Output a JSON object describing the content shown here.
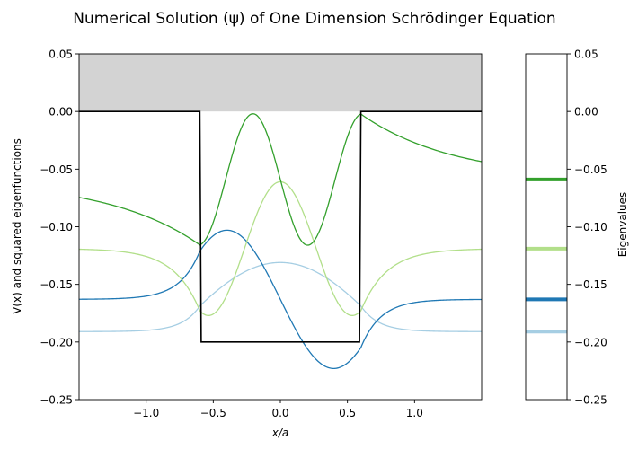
{
  "chart_data": [
    {
      "type": "line",
      "title": "Numerical Solution (ψ) of One Dimension Schrödinger Equation",
      "xlabel": "x/a",
      "ylabel": "V(x) and squared eigenfunctions",
      "xlim": [
        -1.5,
        1.5
      ],
      "ylim": [
        -0.25,
        0.05
      ],
      "xticks": [
        -1.0,
        -0.5,
        0.0,
        0.5,
        1.0
      ],
      "xtick_labels": [
        "−1.0",
        "−0.5",
        "0.0",
        "0.5",
        "1.0"
      ],
      "yticks": [
        0.05,
        0.0,
        -0.05,
        -0.1,
        -0.15,
        -0.2,
        -0.25
      ],
      "ytick_labels": [
        "0.05",
        "0.00",
        "−0.05",
        "−0.10",
        "−0.15",
        "−0.20",
        "−0.25"
      ],
      "grid": false,
      "shaded_region": {
        "y_from": 0.0,
        "y_to": 0.05,
        "color": "#d3d3d3"
      },
      "potential": {
        "color": "#000000",
        "x": [
          -1.5,
          -0.6,
          -0.59,
          0.59,
          0.6,
          1.5
        ],
        "y": [
          0.0,
          0.0,
          -0.2,
          -0.2,
          0.0,
          0.0
        ]
      },
      "series": [
        {
          "level": -0.191,
          "amplitude": 0.06,
          "n": 1,
          "color": "#a6cee3"
        },
        {
          "level": -0.163,
          "amplitude": 0.06,
          "n": 2,
          "color": "#1f78b4"
        },
        {
          "level": -0.119,
          "amplitude": 0.058,
          "n": 3,
          "color": "#b2df8a"
        },
        {
          "level": -0.059,
          "amplitude": 0.057,
          "n": 4,
          "color": "#33a02c"
        }
      ]
    },
    {
      "type": "eigenvalue_bar",
      "ylabel": "Eigenvalues",
      "ylim": [
        -0.25,
        0.05
      ],
      "yticks": [
        0.05,
        0.0,
        -0.05,
        -0.1,
        -0.15,
        -0.2,
        -0.25
      ],
      "ytick_labels": [
        "0.05",
        "0.00",
        "−0.05",
        "−0.10",
        "−0.15",
        "−0.20",
        "−0.25"
      ],
      "values": [
        -0.191,
        -0.163,
        -0.119,
        -0.059
      ],
      "colors": [
        "#a6cee3",
        "#1f78b4",
        "#b2df8a",
        "#33a02c"
      ]
    }
  ]
}
